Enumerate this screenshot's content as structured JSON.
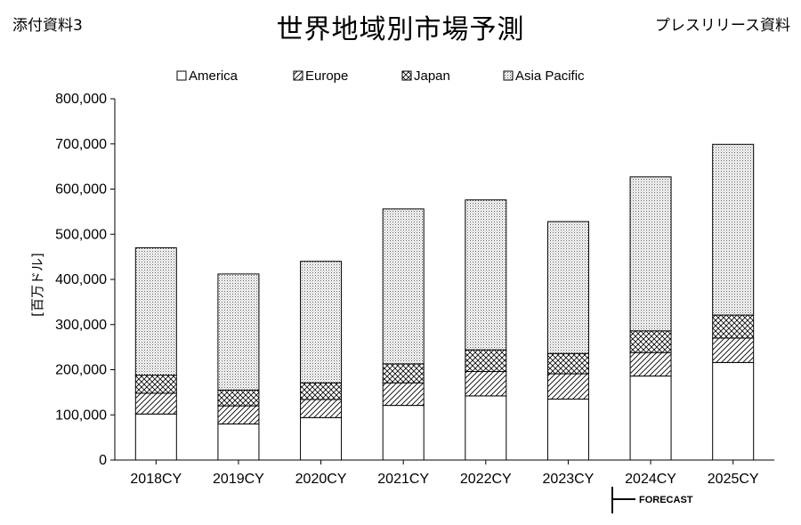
{
  "header": {
    "left_label": "添付資料3",
    "title": "世界地域別市場予測",
    "right_label": "プレスリリース資料"
  },
  "forecast_label": "FORECAST",
  "chart_data": {
    "type": "bar",
    "stacked": true,
    "categories": [
      "2018CY",
      "2019CY",
      "2020CY",
      "2021CY",
      "2022CY",
      "2023CY",
      "2024CY",
      "2025CY"
    ],
    "series": [
      {
        "name": "America",
        "pattern": "blank",
        "values": [
          102000,
          80000,
          94000,
          121000,
          142000,
          135000,
          186000,
          216000
        ]
      },
      {
        "name": "Europe",
        "pattern": "diagonal",
        "values": [
          46000,
          40000,
          40000,
          50000,
          54000,
          56000,
          52000,
          54000
        ]
      },
      {
        "name": "Japan",
        "pattern": "crosshatch",
        "values": [
          40000,
          35000,
          37000,
          42000,
          48000,
          45000,
          48000,
          51000
        ]
      },
      {
        "name": "Asia Pacific",
        "pattern": "dots",
        "values": [
          282000,
          257000,
          269000,
          343000,
          332000,
          292000,
          341000,
          378000
        ]
      }
    ],
    "ylabel": "[百万ドル]",
    "ylim": [
      0,
      800000
    ],
    "yticks": [
      0,
      100000,
      200000,
      300000,
      400000,
      500000,
      600000,
      700000,
      800000
    ],
    "ytick_labels": [
      "0",
      "100,000",
      "200,000",
      "300,000",
      "400,000",
      "500,000",
      "600,000",
      "700,000",
      "800,000"
    ],
    "grid": false,
    "legend_position": "top"
  }
}
